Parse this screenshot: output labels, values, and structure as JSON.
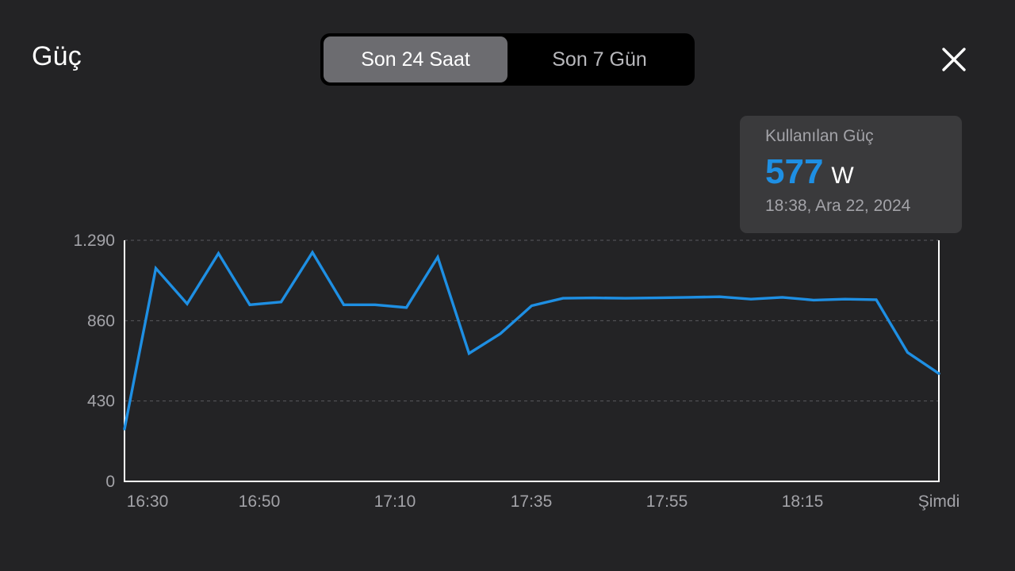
{
  "header": {
    "title": "Güç",
    "tabs": [
      {
        "label": "Son 24 Saat",
        "active": true
      },
      {
        "label": "Son 7 Gün",
        "active": false
      }
    ],
    "close_icon": "close-icon"
  },
  "tooltip": {
    "label": "Kullanılan Güç",
    "value": "577",
    "unit": "W",
    "time": "18:38, Ara 22, 2024"
  },
  "colors": {
    "background": "#232325",
    "line": "#1e8fe3",
    "accent_value": "#1e8fe3"
  },
  "chart_data": {
    "type": "line",
    "title": "",
    "xlabel": "",
    "ylabel": "",
    "ylim": [
      0,
      1290
    ],
    "y_ticks": [
      {
        "value": 0,
        "label": "0"
      },
      {
        "value": 430,
        "label": "430"
      },
      {
        "value": 860,
        "label": "860"
      },
      {
        "value": 1290,
        "label": "1.290"
      }
    ],
    "x_ticks": [
      "16:30",
      "16:50",
      "17:10",
      "17:35",
      "17:55",
      "18:15",
      "Şimdi"
    ],
    "grid": "horizontal-dashed",
    "series": [
      {
        "values": [
          280,
          1140,
          950,
          1220,
          945,
          960,
          1225,
          945,
          945,
          930,
          1200,
          685,
          790,
          940,
          980,
          982,
          980,
          982,
          985,
          988,
          975,
          985,
          970,
          975,
          972,
          690,
          577
        ]
      }
    ]
  }
}
